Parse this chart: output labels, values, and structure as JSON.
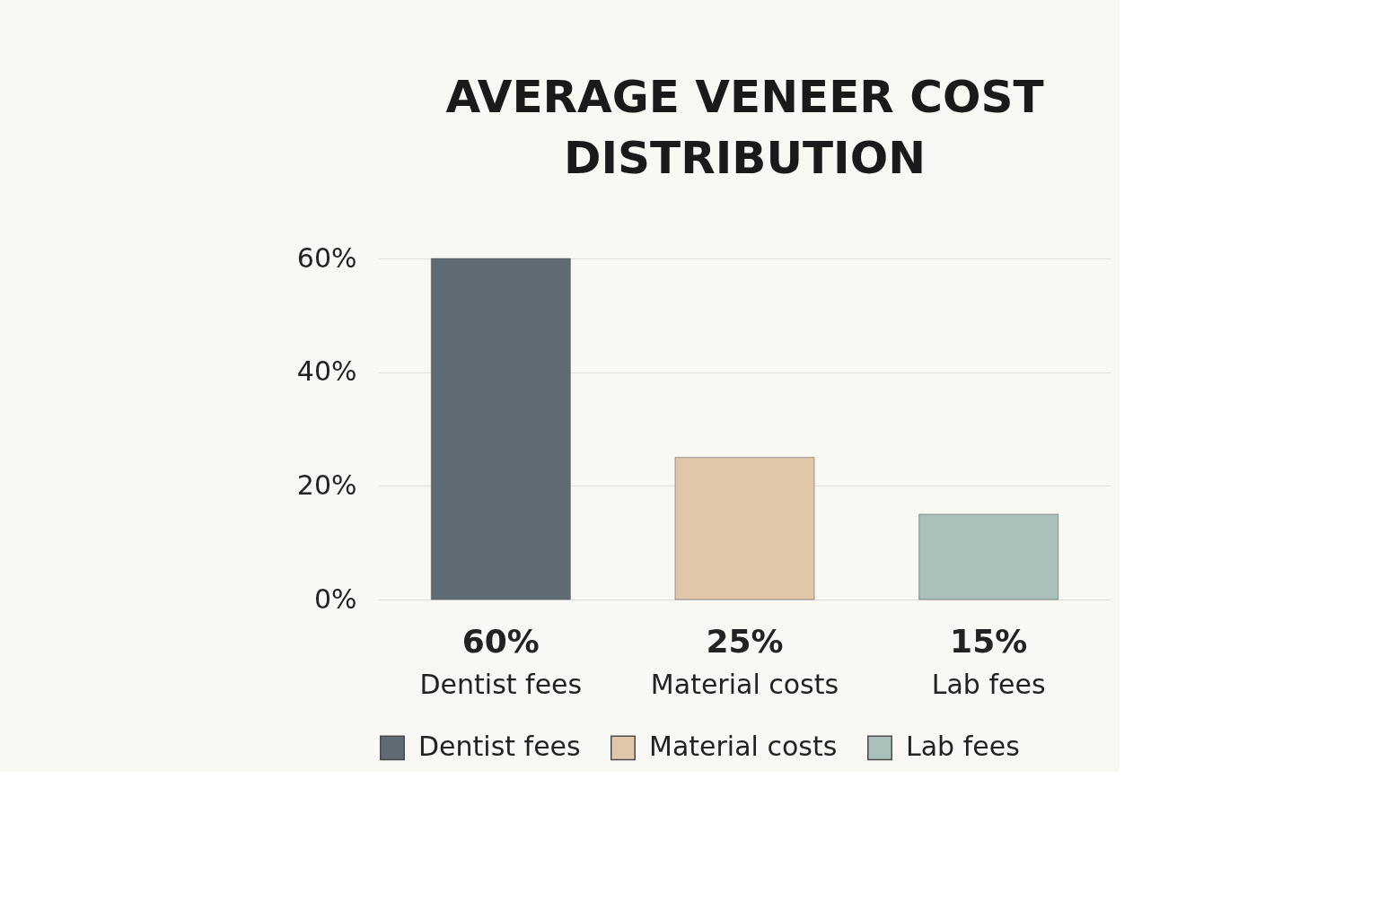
{
  "chart_data": {
    "type": "bar",
    "title": "AVERAGE VENEER COST DISTRIBUTION",
    "categories": [
      "Dentist fees",
      "Material costs",
      "Lab fees"
    ],
    "series": [
      {
        "name": "Dentist fees",
        "color": "#5f6b74",
        "values": [
          60,
          null,
          null
        ],
        "value_labels": [
          "60%",
          null,
          null
        ]
      },
      {
        "name": "Material costs",
        "color": "#e1c7aa",
        "values": [
          null,
          25,
          null
        ],
        "value_labels": [
          null,
          "25%",
          null
        ]
      },
      {
        "name": "Lab fees",
        "color": "#a9c1ba",
        "values": [
          null,
          null,
          15
        ],
        "value_labels": [
          null,
          null,
          "15%"
        ]
      }
    ],
    "ylim": [
      0,
      60
    ],
    "yticks": [
      {
        "value": 0,
        "label": "0%"
      },
      {
        "value": 20,
        "label": "20%"
      },
      {
        "value": 40,
        "label": "40%"
      },
      {
        "value": 60,
        "label": "60%"
      }
    ],
    "grid": "y",
    "legend": "bottom"
  }
}
